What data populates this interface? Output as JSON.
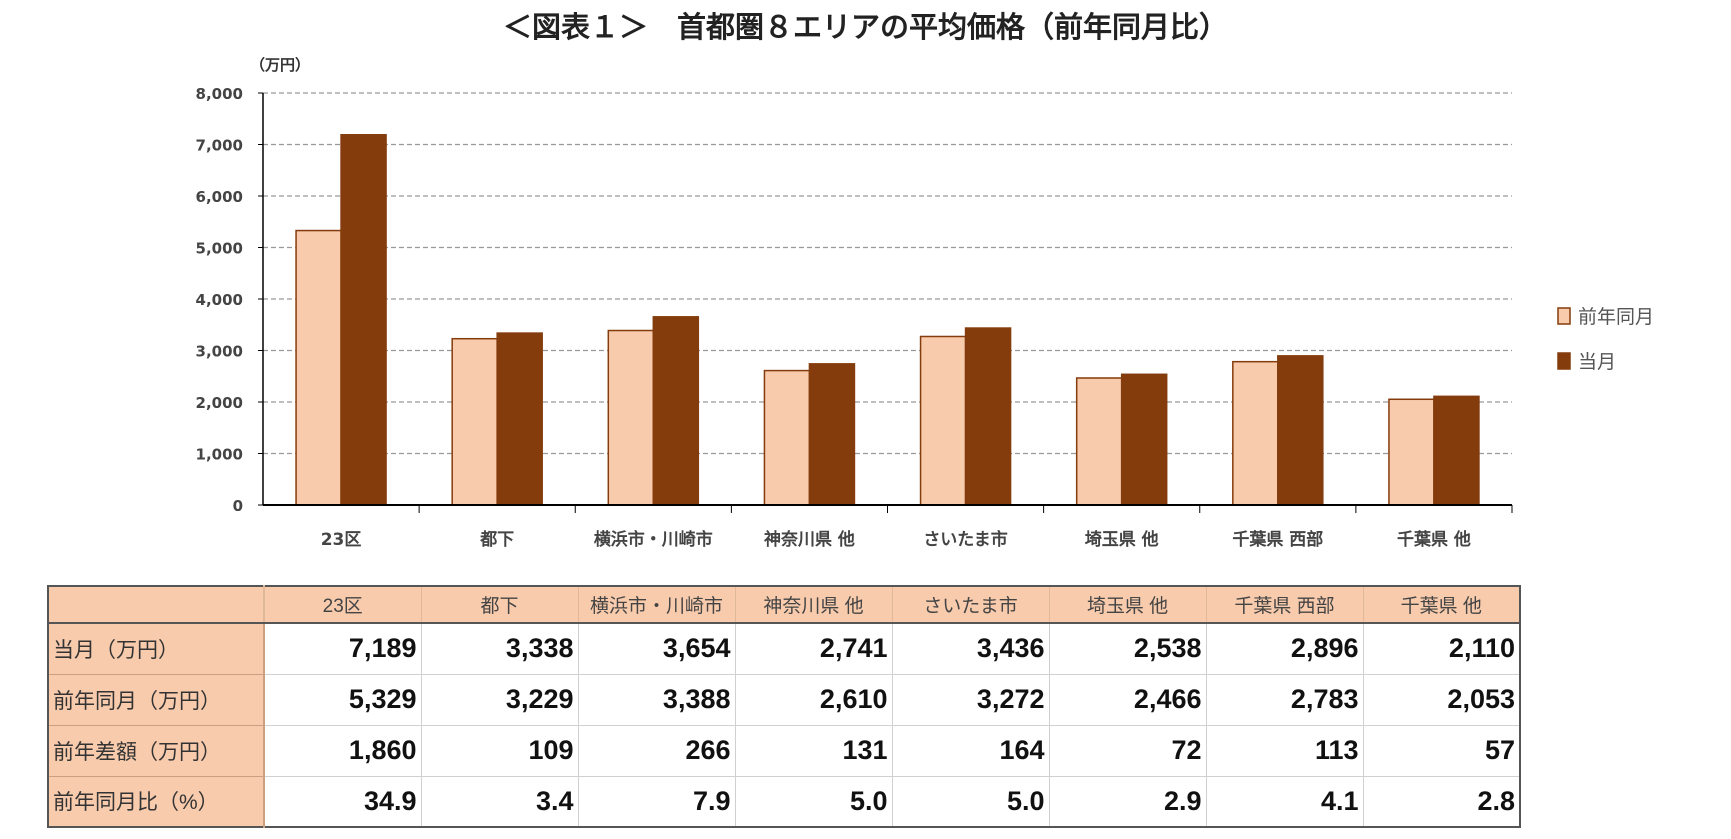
{
  "title": "＜図表１＞　首都圏８エリアの平均価格（前年同月比）",
  "chart_data": {
    "type": "bar",
    "title": "＜図表１＞　首都圏８エリアの平均価格（前年同月比）",
    "ylabel": "（万円）",
    "ylim": [
      0,
      8000
    ],
    "yticks": [
      "0",
      "1,000",
      "2,000",
      "3,000",
      "4,000",
      "5,000",
      "6,000",
      "7,000",
      "8,000"
    ],
    "grid": true,
    "legend_position": "right",
    "categories": [
      "23区",
      "都下",
      "横浜市・川崎市",
      "神奈川県 他",
      "さいたま市",
      "埼玉県 他",
      "千葉県 西部",
      "千葉県 他"
    ],
    "series": [
      {
        "name": "前年同月",
        "color": "#F8CBAD",
        "values": [
          5329,
          3229,
          3388,
          2610,
          3272,
          2466,
          2783,
          2053
        ]
      },
      {
        "name": "当月",
        "color": "#843C0C",
        "values": [
          7189,
          3338,
          3654,
          2741,
          3436,
          2538,
          2896,
          2110
        ]
      }
    ]
  },
  "table": {
    "header": [
      "",
      "23区",
      "都下",
      "横浜市・川崎市",
      "神奈川県 他",
      "さいたま市",
      "埼玉県 他",
      "千葉県 西部",
      "千葉県 他"
    ],
    "rows": [
      {
        "label": "当月（万円）",
        "values": [
          "7,189",
          "3,338",
          "3,654",
          "2,741",
          "3,436",
          "2,538",
          "2,896",
          "2,110"
        ]
      },
      {
        "label": "前年同月（万円）",
        "values": [
          "5,329",
          "3,229",
          "3,388",
          "2,610",
          "3,272",
          "2,466",
          "2,783",
          "2,053"
        ]
      },
      {
        "label": "前年差額（万円）",
        "values": [
          "1,860",
          "109",
          "266",
          "131",
          "164",
          "72",
          "113",
          "57"
        ]
      },
      {
        "label": "前年同月比（%）",
        "values": [
          "34.9",
          "3.4",
          "7.9",
          "5.0",
          "5.0",
          "2.9",
          "4.1",
          "2.8"
        ]
      }
    ]
  }
}
